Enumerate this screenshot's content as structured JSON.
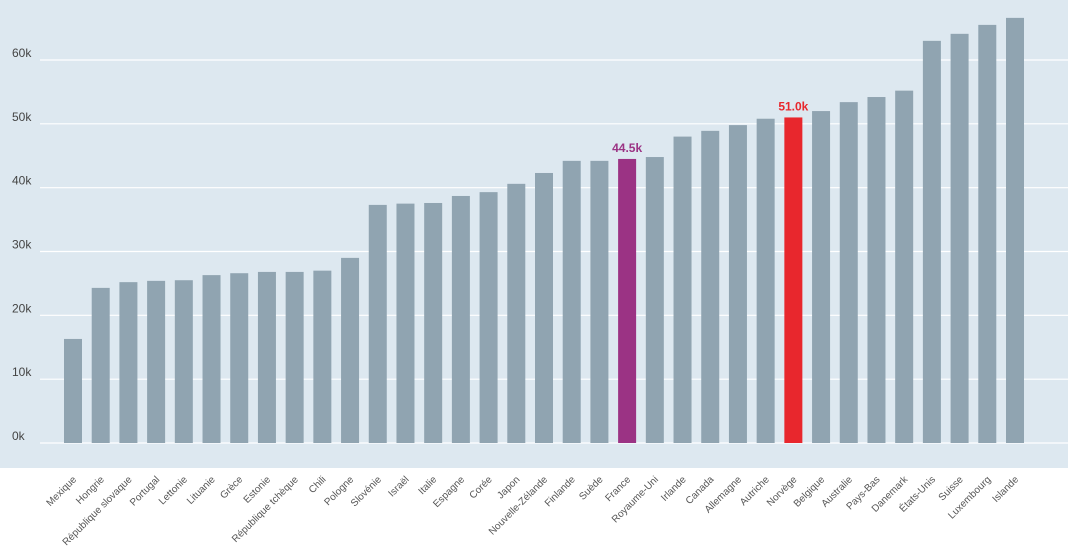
{
  "chart_data": {
    "type": "bar",
    "title": "",
    "xlabel": "",
    "ylabel": "",
    "ylim": [
      0,
      68000
    ],
    "grid": true,
    "yticks": [
      0,
      10000,
      20000,
      30000,
      40000,
      50000,
      60000
    ],
    "ytick_labels": [
      "0k",
      "10k",
      "20k",
      "30k",
      "40k",
      "50k",
      "60k"
    ],
    "categories": [
      "Mexique",
      "Hongrie",
      "République slovaque",
      "Portugal",
      "Lettonie",
      "Lituanie",
      "Grèce",
      "Estonie",
      "République tchèque",
      "Chili",
      "Pologne",
      "Slovénie",
      "Israël",
      "Italie",
      "Espagne",
      "Corée",
      "Japon",
      "Nouvelle-Zélande",
      "Finlande",
      "Suède",
      "France",
      "Royaume-Uni",
      "Irlande",
      "Canada",
      "Allemagne",
      "Autriche",
      "Norvège",
      "Belgique",
      "Australie",
      "Pays-Bas",
      "Danemark",
      "États-Unis",
      "Suisse",
      "Luxembourg",
      "Islande"
    ],
    "values": [
      16300,
      24300,
      25200,
      25400,
      25500,
      26300,
      26600,
      26800,
      26800,
      27000,
      29000,
      37300,
      37500,
      37600,
      38700,
      39300,
      40600,
      42300,
      44200,
      44200,
      44500,
      44800,
      48000,
      48900,
      49800,
      50800,
      51000,
      52000,
      53400,
      54200,
      55200,
      63000,
      64100,
      65500,
      66600
    ],
    "highlights": [
      {
        "category": "France",
        "label": "44.5k",
        "color": "#9b3384"
      },
      {
        "category": "Norvège",
        "label": "51.0k",
        "color": "#e8272d"
      }
    ],
    "colors": {
      "bar": "#90a4b1",
      "background": "#dde8f0",
      "grid": "#ffffff"
    }
  }
}
